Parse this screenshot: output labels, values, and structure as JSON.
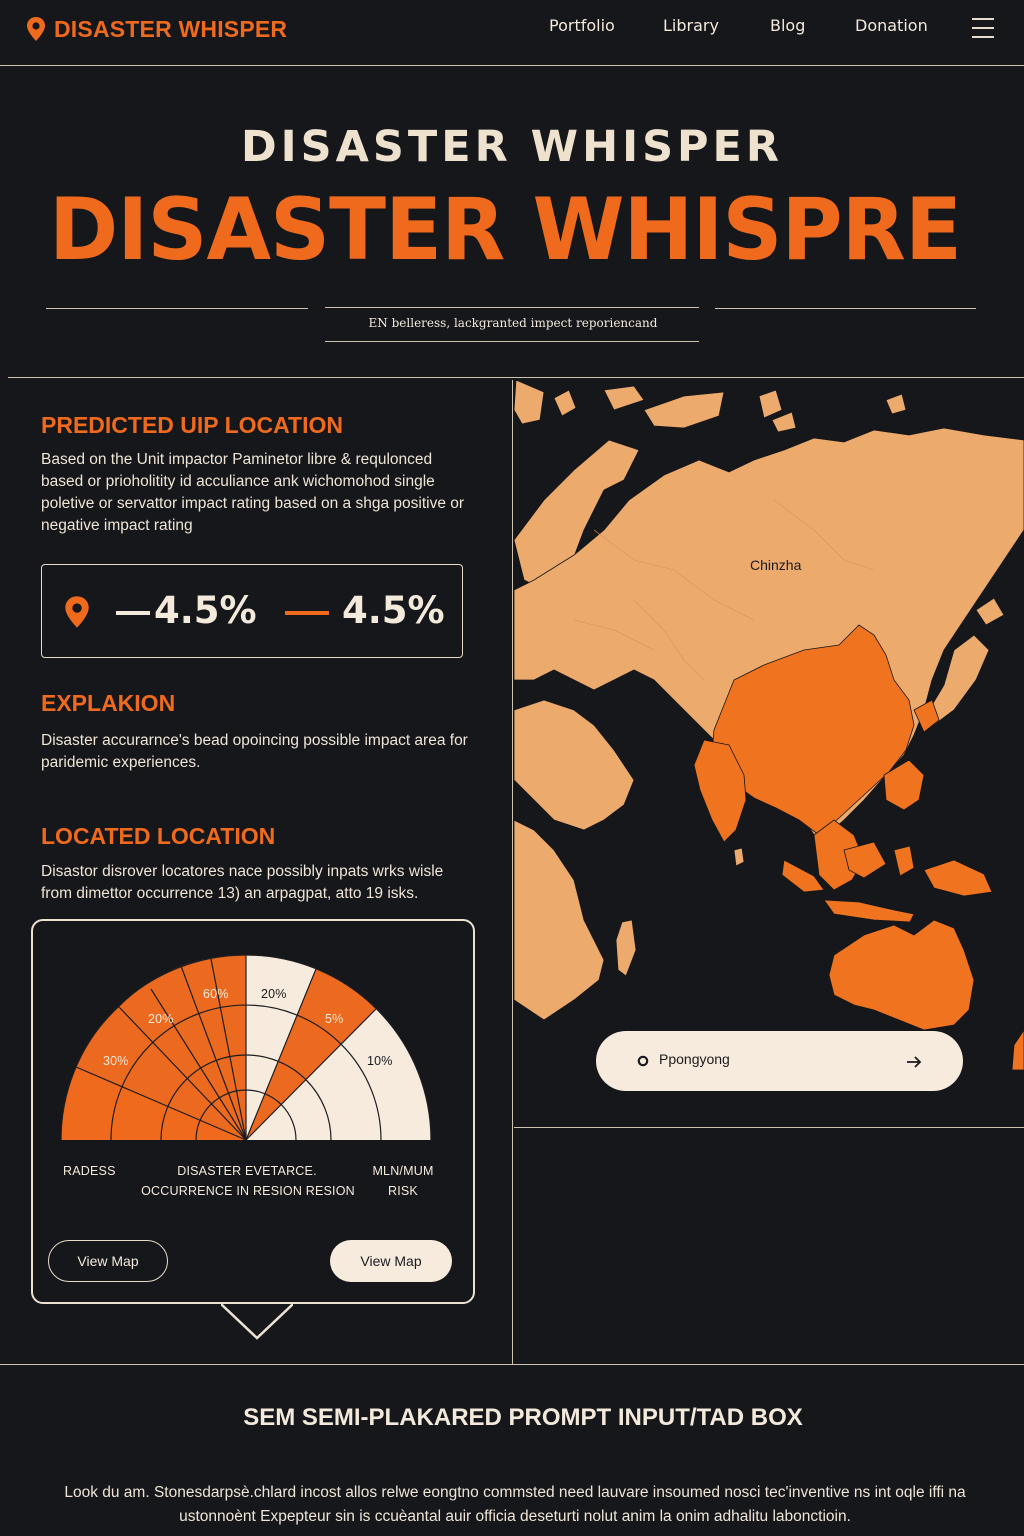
{
  "brand": {
    "name": "DISASTER WHISPER",
    "icon": "map-pin-icon",
    "accent": "#f06a1d"
  },
  "nav": {
    "links": [
      "Portfolio",
      "Library",
      "Blog",
      "Donation"
    ],
    "menu_icon": "hamburger-menu-icon"
  },
  "hero": {
    "title_small": "DISASTER WHISPER",
    "title_large": "DISASTER WHISPRE",
    "subtitle": "EN belleress, lackgranted impect reporiencand"
  },
  "predicted": {
    "heading": "PREDICTED UIP LOCATION",
    "body": "Based on the Unit impactor Paminetor libre & requlonced based or prioholitity id acculiance ank wichomohod single poletive or servattor impact rating based on a shga positive or negative impact rating",
    "stat_1": "4.5%",
    "stat_2": "4.5%"
  },
  "explanation": {
    "heading": "EXPLAKION",
    "body": "Disaster accurarnce's bead opoincing possible impact area for paridemic experiences."
  },
  "located": {
    "heading": "LOCATED LOCATION",
    "body": "Disastor disrover locatores nace possibly inpats wrks wisle from dimettor occurrence 13) an arpagpat, atto 19 isks."
  },
  "risk_card": {
    "segment_labels": [
      "30%",
      "20%",
      "60%",
      "20%",
      "5%",
      "10%"
    ],
    "caption_left": "RADESS",
    "caption_center_1": "DISASTER EVETARCE.",
    "caption_center_2": "OCCURRENCE IN RESION RESION",
    "caption_right_1": "MLN/MUM",
    "caption_right_2": "RISK",
    "button_outline": "View Map",
    "button_solid": "View Map"
  },
  "map": {
    "region_label": "Chinzha",
    "location_pill": "Ppongyong",
    "land_color": "#ecaa6c",
    "highlight_color": "#f0731f"
  },
  "bottom": {
    "title": "SEM SEMI-PLAKARED PROMPT INPUT/TAD BOX",
    "body": "Look du am. Stonesdarpsè.chlard incost allos relwe eongtno commsted need lauvare insoumed nosci tec'inventive ns int oqle iffi na ustonnoènt Expepteur sin is ccuèantal auir officia deseturti nolut anim la onim adhalitu labonctioin."
  }
}
